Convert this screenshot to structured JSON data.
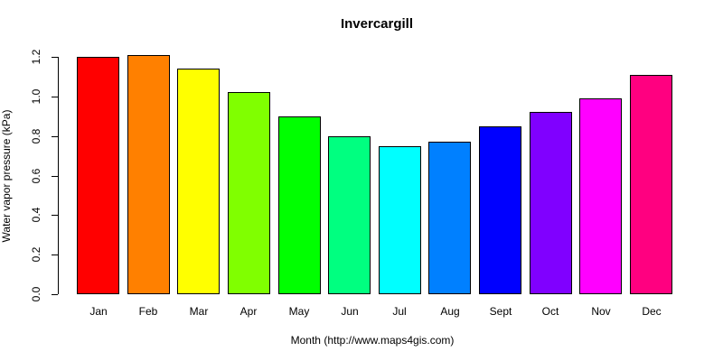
{
  "chart_data": {
    "type": "bar",
    "title": "Invercargill",
    "xlabel": "Month (http://www.maps4gis.com)",
    "ylabel": "Water vapor pressure (kPa)",
    "categories": [
      "Jan",
      "Feb",
      "Mar",
      "Apr",
      "May",
      "Jun",
      "Jul",
      "Aug",
      "Sept",
      "Oct",
      "Nov",
      "Dec"
    ],
    "values": [
      1.2,
      1.21,
      1.14,
      1.02,
      0.9,
      0.8,
      0.75,
      0.77,
      0.85,
      0.92,
      0.99,
      1.11
    ],
    "bar_colors": [
      "#FF0000",
      "#FF8000",
      "#FFFF00",
      "#80FF00",
      "#00FF00",
      "#00FF80",
      "#00FFFF",
      "#0080FF",
      "#0000FF",
      "#8000FF",
      "#FF00FF",
      "#FF0080"
    ],
    "bar_border_color": "#000000",
    "axis_color": "#000000",
    "text_color": "#000000",
    "background_color": "#FFFFFF",
    "ylim": [
      0,
      1.2
    ],
    "yticks": [
      0.0,
      0.2,
      0.4,
      0.6,
      0.8,
      1.0,
      1.2
    ],
    "ytick_labels": [
      "0.0",
      "0.2",
      "0.4",
      "0.6",
      "0.8",
      "1.0",
      "1.2"
    ],
    "grid": false,
    "legend": "none"
  }
}
